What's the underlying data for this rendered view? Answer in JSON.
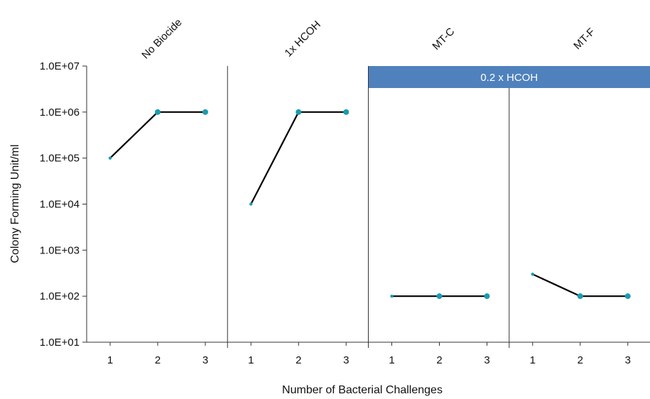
{
  "chart_data": {
    "type": "line",
    "y_scale": "log",
    "ylabel": "Colony Forming Unit/ml",
    "xlabel": "Number of Bacterial Challenges",
    "ylim": [
      10,
      10000000
    ],
    "y_ticks": [
      {
        "value": 10,
        "label": "1.0E+01"
      },
      {
        "value": 100,
        "label": "1.0E+02"
      },
      {
        "value": 1000,
        "label": "1.0E+03"
      },
      {
        "value": 10000,
        "label": "1.0E+04"
      },
      {
        "value": 100000,
        "label": "1.0E+05"
      },
      {
        "value": 1000000,
        "label": "1.0E+06"
      },
      {
        "value": 10000000,
        "label": "1.0E+07"
      }
    ],
    "x_categories": [
      "1",
      "2",
      "3"
    ],
    "panels": [
      {
        "title": "No Biocide",
        "values": [
          100000,
          1000000,
          1000000
        ]
      },
      {
        "title": "1x HCOH",
        "values": [
          10000,
          1000000,
          1000000
        ]
      },
      {
        "title": "MT-C",
        "values": [
          100,
          100,
          100
        ]
      },
      {
        "title": "MT-F",
        "values": [
          300,
          100,
          100
        ]
      }
    ],
    "group_band": {
      "label": "0.2 x HCOH",
      "panels": [
        "MT-C",
        "MT-F"
      ]
    },
    "grid": false,
    "colors": {
      "line": "#000000",
      "marker": "#1a9cb0",
      "band": "#4f81bd",
      "axis": "#333333"
    }
  }
}
